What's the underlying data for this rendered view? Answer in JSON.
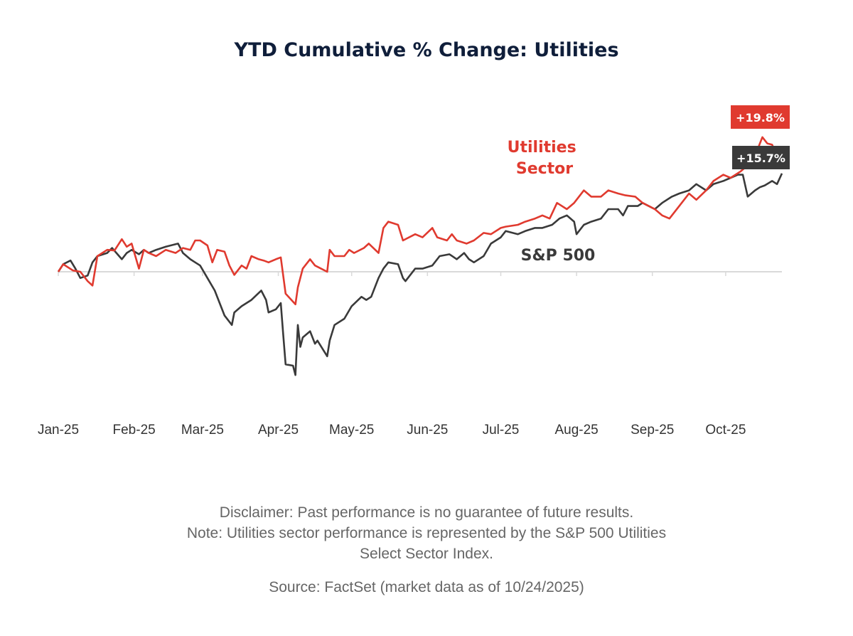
{
  "colors": {
    "utilities": "#e03a2f",
    "sp500": "#3a3a3a",
    "title": "#0f1e3a",
    "baseline": "#d9d9d9"
  },
  "footer": {
    "disclaimer": "Disclaimer: Past performance is no guarantee of future results.",
    "note_line1": "Note: Utilities sector performance is represented by the S&P 500 Utilities",
    "note_line2": "Select Sector Index.",
    "source": "Source: FactSet (market data as of 10/24/2025)"
  },
  "chart_data": {
    "type": "line",
    "title": "YTD Cumulative % Change: Utilities",
    "xlabel": "",
    "ylabel": "",
    "x_range": [
      "2025-01-01",
      "2025-10-24"
    ],
    "ylim": [
      -20,
      25
    ],
    "grid": false,
    "y_ticks_shown": false,
    "categories": [
      "Jan-25",
      "Feb-25",
      "Mar-25",
      "Apr-25",
      "May-25",
      "Jun-25",
      "Jul-25",
      "Aug-25",
      "Sep-25",
      "Oct-25"
    ],
    "series": [
      {
        "name": "Utilities Sector",
        "label_lines": [
          "Utilities",
          "Sector"
        ],
        "end_label": "+19.8%",
        "points": [
          [
            "2025-01-01",
            0.0
          ],
          [
            "2025-01-03",
            1.2
          ],
          [
            "2025-01-07",
            0.2
          ],
          [
            "2025-01-10",
            0.0
          ],
          [
            "2025-01-13",
            -1.5
          ],
          [
            "2025-01-15",
            -2.2
          ],
          [
            "2025-01-17",
            2.5
          ],
          [
            "2025-01-21",
            3.5
          ],
          [
            "2025-01-24",
            3.4
          ],
          [
            "2025-01-27",
            5.2
          ],
          [
            "2025-01-29",
            4.0
          ],
          [
            "2025-01-31",
            4.5
          ],
          [
            "2025-02-03",
            0.5
          ],
          [
            "2025-02-05",
            3.5
          ],
          [
            "2025-02-07",
            3.0
          ],
          [
            "2025-02-10",
            2.5
          ],
          [
            "2025-02-14",
            3.5
          ],
          [
            "2025-02-18",
            3.0
          ],
          [
            "2025-02-21",
            3.8
          ],
          [
            "2025-02-24",
            3.5
          ],
          [
            "2025-02-26",
            5.0
          ],
          [
            "2025-02-28",
            5.0
          ],
          [
            "2025-03-03",
            4.2
          ],
          [
            "2025-03-05",
            1.5
          ],
          [
            "2025-03-07",
            3.5
          ],
          [
            "2025-03-10",
            3.2
          ],
          [
            "2025-03-12",
            1.0
          ],
          [
            "2025-03-14",
            -0.5
          ],
          [
            "2025-03-17",
            1.0
          ],
          [
            "2025-03-19",
            0.5
          ],
          [
            "2025-03-21",
            2.5
          ],
          [
            "2025-03-24",
            2.0
          ],
          [
            "2025-03-26",
            1.8
          ],
          [
            "2025-03-28",
            1.5
          ],
          [
            "2025-03-31",
            2.0
          ],
          [
            "2025-04-02",
            2.3
          ],
          [
            "2025-04-04",
            -3.5
          ],
          [
            "2025-04-08",
            -5.2
          ],
          [
            "2025-04-09",
            -2.5
          ],
          [
            "2025-04-11",
            0.5
          ],
          [
            "2025-04-14",
            2.0
          ],
          [
            "2025-04-16",
            1.0
          ],
          [
            "2025-04-21",
            0.0
          ],
          [
            "2025-04-22",
            3.5
          ],
          [
            "2025-04-24",
            2.5
          ],
          [
            "2025-04-28",
            2.5
          ],
          [
            "2025-04-30",
            3.5
          ],
          [
            "2025-05-02",
            3.0
          ],
          [
            "2025-05-06",
            3.8
          ],
          [
            "2025-05-08",
            4.5
          ],
          [
            "2025-05-12",
            3.0
          ],
          [
            "2025-05-14",
            7.0
          ],
          [
            "2025-05-16",
            8.0
          ],
          [
            "2025-05-20",
            7.5
          ],
          [
            "2025-05-22",
            5.0
          ],
          [
            "2025-05-27",
            6.0
          ],
          [
            "2025-05-30",
            5.5
          ],
          [
            "2025-06-03",
            7.0
          ],
          [
            "2025-06-05",
            5.5
          ],
          [
            "2025-06-09",
            5.0
          ],
          [
            "2025-06-11",
            6.0
          ],
          [
            "2025-06-13",
            5.0
          ],
          [
            "2025-06-17",
            4.5
          ],
          [
            "2025-06-20",
            5.0
          ],
          [
            "2025-06-24",
            6.2
          ],
          [
            "2025-06-27",
            6.0
          ],
          [
            "2025-07-01",
            7.0
          ],
          [
            "2025-07-03",
            7.2
          ],
          [
            "2025-07-08",
            7.5
          ],
          [
            "2025-07-11",
            8.0
          ],
          [
            "2025-07-15",
            8.5
          ],
          [
            "2025-07-18",
            9.0
          ],
          [
            "2025-07-21",
            8.5
          ],
          [
            "2025-07-24",
            11.0
          ],
          [
            "2025-07-28",
            10.0
          ],
          [
            "2025-07-31",
            11.0
          ],
          [
            "2025-08-04",
            13.0
          ],
          [
            "2025-08-07",
            12.0
          ],
          [
            "2025-08-11",
            12.0
          ],
          [
            "2025-08-14",
            13.0
          ],
          [
            "2025-08-18",
            12.5
          ],
          [
            "2025-08-21",
            12.2
          ],
          [
            "2025-08-25",
            12.0
          ],
          [
            "2025-08-28",
            11.0
          ],
          [
            "2025-09-02",
            10.0
          ],
          [
            "2025-09-05",
            9.0
          ],
          [
            "2025-09-08",
            8.5
          ],
          [
            "2025-09-12",
            10.5
          ],
          [
            "2025-09-16",
            12.5
          ],
          [
            "2025-09-19",
            11.5
          ],
          [
            "2025-09-23",
            13.0
          ],
          [
            "2025-09-26",
            14.5
          ],
          [
            "2025-09-30",
            15.5
          ],
          [
            "2025-10-03",
            15.0
          ],
          [
            "2025-10-07",
            16.0
          ],
          [
            "2025-10-10",
            17.0
          ],
          [
            "2025-10-14",
            19.5
          ],
          [
            "2025-10-16",
            21.5
          ],
          [
            "2025-10-18",
            20.5
          ],
          [
            "2025-10-20",
            20.3
          ],
          [
            "2025-10-22",
            18.5
          ],
          [
            "2025-10-24",
            19.8
          ]
        ]
      },
      {
        "name": "S&P 500",
        "end_label": "+15.7%",
        "points": [
          [
            "2025-01-01",
            0.0
          ],
          [
            "2025-01-03",
            1.2
          ],
          [
            "2025-01-06",
            1.8
          ],
          [
            "2025-01-08",
            0.5
          ],
          [
            "2025-01-10",
            -1.0
          ],
          [
            "2025-01-13",
            -0.6
          ],
          [
            "2025-01-15",
            1.5
          ],
          [
            "2025-01-17",
            2.5
          ],
          [
            "2025-01-21",
            3.0
          ],
          [
            "2025-01-23",
            3.8
          ],
          [
            "2025-01-27",
            2.0
          ],
          [
            "2025-01-29",
            3.0
          ],
          [
            "2025-01-31",
            3.5
          ],
          [
            "2025-02-03",
            2.8
          ],
          [
            "2025-02-05",
            3.5
          ],
          [
            "2025-02-07",
            3.0
          ],
          [
            "2025-02-10",
            3.5
          ],
          [
            "2025-02-14",
            4.0
          ],
          [
            "2025-02-19",
            4.5
          ],
          [
            "2025-02-21",
            3.0
          ],
          [
            "2025-02-24",
            2.0
          ],
          [
            "2025-02-26",
            1.5
          ],
          [
            "2025-02-28",
            1.0
          ],
          [
            "2025-03-03",
            -1.0
          ],
          [
            "2025-03-06",
            -3.0
          ],
          [
            "2025-03-10",
            -7.0
          ],
          [
            "2025-03-13",
            -8.5
          ],
          [
            "2025-03-14",
            -6.5
          ],
          [
            "2025-03-17",
            -5.5
          ],
          [
            "2025-03-19",
            -5.0
          ],
          [
            "2025-03-21",
            -4.5
          ],
          [
            "2025-03-25",
            -3.0
          ],
          [
            "2025-03-27",
            -4.5
          ],
          [
            "2025-03-28",
            -6.5
          ],
          [
            "2025-03-31",
            -6.0
          ],
          [
            "2025-04-02",
            -5.0
          ],
          [
            "2025-04-03",
            -10.0
          ],
          [
            "2025-04-04",
            -14.8
          ],
          [
            "2025-04-07",
            -15.0
          ],
          [
            "2025-04-08",
            -16.5
          ],
          [
            "2025-04-09",
            -8.5
          ],
          [
            "2025-04-10",
            -12.0
          ],
          [
            "2025-04-11",
            -10.5
          ],
          [
            "2025-04-14",
            -9.5
          ],
          [
            "2025-04-16",
            -11.5
          ],
          [
            "2025-04-17",
            -11.0
          ],
          [
            "2025-04-21",
            -13.5
          ],
          [
            "2025-04-22",
            -11.0
          ],
          [
            "2025-04-24",
            -8.5
          ],
          [
            "2025-04-28",
            -7.5
          ],
          [
            "2025-05-01",
            -5.5
          ],
          [
            "2025-05-05",
            -4.0
          ],
          [
            "2025-05-07",
            -4.5
          ],
          [
            "2025-05-09",
            -4.0
          ],
          [
            "2025-05-12",
            -1.0
          ],
          [
            "2025-05-14",
            0.5
          ],
          [
            "2025-05-16",
            1.5
          ],
          [
            "2025-05-20",
            1.2
          ],
          [
            "2025-05-22",
            -1.0
          ],
          [
            "2025-05-23",
            -1.5
          ],
          [
            "2025-05-27",
            0.5
          ],
          [
            "2025-05-30",
            0.5
          ],
          [
            "2025-06-03",
            1.0
          ],
          [
            "2025-06-06",
            2.5
          ],
          [
            "2025-06-10",
            2.8
          ],
          [
            "2025-06-13",
            2.0
          ],
          [
            "2025-06-16",
            3.0
          ],
          [
            "2025-06-18",
            2.0
          ],
          [
            "2025-06-20",
            1.5
          ],
          [
            "2025-06-24",
            2.5
          ],
          [
            "2025-06-27",
            4.5
          ],
          [
            "2025-07-01",
            5.5
          ],
          [
            "2025-07-03",
            6.5
          ],
          [
            "2025-07-08",
            6.0
          ],
          [
            "2025-07-11",
            6.5
          ],
          [
            "2025-07-15",
            7.0
          ],
          [
            "2025-07-18",
            7.0
          ],
          [
            "2025-07-22",
            7.5
          ],
          [
            "2025-07-25",
            8.5
          ],
          [
            "2025-07-28",
            9.0
          ],
          [
            "2025-07-31",
            8.0
          ],
          [
            "2025-08-01",
            6.0
          ],
          [
            "2025-08-04",
            7.5
          ],
          [
            "2025-08-07",
            8.0
          ],
          [
            "2025-08-11",
            8.5
          ],
          [
            "2025-08-14",
            10.0
          ],
          [
            "2025-08-18",
            10.0
          ],
          [
            "2025-08-20",
            9.0
          ],
          [
            "2025-08-22",
            10.5
          ],
          [
            "2025-08-26",
            10.5
          ],
          [
            "2025-08-28",
            11.0
          ],
          [
            "2025-09-02",
            10.0
          ],
          [
            "2025-09-05",
            11.0
          ],
          [
            "2025-09-09",
            12.0
          ],
          [
            "2025-09-12",
            12.5
          ],
          [
            "2025-09-16",
            13.0
          ],
          [
            "2025-09-19",
            14.0
          ],
          [
            "2025-09-23",
            13.0
          ],
          [
            "2025-09-26",
            14.0
          ],
          [
            "2025-09-30",
            14.5
          ],
          [
            "2025-10-03",
            15.0
          ],
          [
            "2025-10-06",
            15.5
          ],
          [
            "2025-10-08",
            15.5
          ],
          [
            "2025-10-10",
            12.0
          ],
          [
            "2025-10-13",
            13.0
          ],
          [
            "2025-10-15",
            13.5
          ],
          [
            "2025-10-17",
            13.8
          ],
          [
            "2025-10-20",
            14.5
          ],
          [
            "2025-10-22",
            14.0
          ],
          [
            "2025-10-24",
            15.7
          ]
        ]
      }
    ]
  }
}
